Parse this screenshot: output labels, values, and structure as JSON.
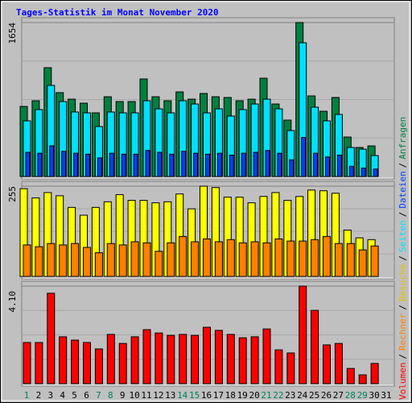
{
  "chart_data": [
    {
      "type": "bar",
      "title": "Tages-Statistik im Monat November 2020",
      "legend_separator": "/",
      "ylim": [
        0,
        1654
      ],
      "yticks": [
        1654
      ],
      "series": [
        {
          "name": "Anfragen",
          "color": "#008040",
          "values": [
            753,
            814,
            1169,
            901,
            831,
            788,
            684,
            857,
            805,
            805,
            1048,
            857,
            814,
            909,
            831,
            892,
            857,
            849,
            814,
            831,
            1056,
            779,
            606,
            1654,
            866,
            701,
            849,
            424,
            312,
            329,
            null
          ]
        },
        {
          "name": "Seiten",
          "color": "#00e0ff",
          "values": [
            598,
            719,
            979,
            805,
            693,
            684,
            537,
            693,
            684,
            684,
            814,
            727,
            684,
            814,
            779,
            684,
            727,
            650,
            719,
            779,
            831,
            727,
            494,
            1437,
            745,
            598,
            667,
            312,
            294,
            225,
            null
          ]
        },
        {
          "name": "Dateien",
          "color": "#0040ff",
          "values": [
            260,
            250,
            330,
            270,
            250,
            240,
            200,
            250,
            240,
            240,
            280,
            260,
            240,
            270,
            250,
            240,
            250,
            230,
            250,
            260,
            280,
            250,
            180,
            420,
            250,
            210,
            230,
            110,
            90,
            80,
            null
          ]
        }
      ]
    },
    {
      "type": "bar",
      "ylim": [
        0,
        255
      ],
      "yticks": [
        255
      ],
      "series": [
        {
          "name": "Besuche",
          "color": "#ffff00",
          "values": [
            248,
            222,
            237,
            228,
            195,
            173,
            195,
            211,
            231,
            215,
            215,
            208,
            211,
            233,
            191,
            255,
            251,
            224,
            224,
            208,
            226,
            237,
            215,
            226,
            244,
            242,
            235,
            131,
            109,
            104,
            null
          ]
        },
        {
          "name": "Rechner",
          "color": "#ff8000",
          "values": [
            89,
            84,
            93,
            89,
            93,
            82,
            67,
            93,
            89,
            98,
            95,
            71,
            95,
            113,
            98,
            106,
            98,
            104,
            95,
            98,
            95,
            106,
            100,
            100,
            104,
            113,
            93,
            93,
            75,
            86,
            null
          ]
        }
      ]
    },
    {
      "type": "bar",
      "ylim": [
        0,
        4.1
      ],
      "yticks": [
        {
          "value": 4.1,
          "label": "4.10"
        }
      ],
      "categories": [
        "1",
        "2",
        "3",
        "4",
        "5",
        "6",
        "7",
        "8",
        "9",
        "10",
        "11",
        "12",
        "13",
        "14",
        "15",
        "16",
        "17",
        "18",
        "19",
        "20",
        "21",
        "22",
        "23",
        "24",
        "25",
        "26",
        "27",
        "28",
        "29",
        "30",
        "31"
      ],
      "category_colors": [
        "#00805c",
        "#000000",
        "#000000",
        "#000000",
        "#000000",
        "#000000",
        "#00805c",
        "#00805c",
        "#000000",
        "#000000",
        "#000000",
        "#000000",
        "#000000",
        "#00805c",
        "#00805c",
        "#000000",
        "#000000",
        "#000000",
        "#000000",
        "#000000",
        "#00805c",
        "#00805c",
        "#000000",
        "#000000",
        "#000000",
        "#000000",
        "#000000",
        "#00805c",
        "#00805c",
        "#000000",
        "#000000"
      ],
      "series": [
        {
          "name": "Volumen",
          "color": "#ff0000",
          "values": [
            1.73,
            1.73,
            3.8,
            1.97,
            1.83,
            1.73,
            1.46,
            2.07,
            1.69,
            1.97,
            2.27,
            2.13,
            2.03,
            2.07,
            2.03,
            2.37,
            2.24,
            2.07,
            1.93,
            1.97,
            2.3,
            1.42,
            1.29,
            4.1,
            3.08,
            1.63,
            1.69,
            0.64,
            0.37,
            0.85,
            null
          ]
        }
      ]
    }
  ]
}
